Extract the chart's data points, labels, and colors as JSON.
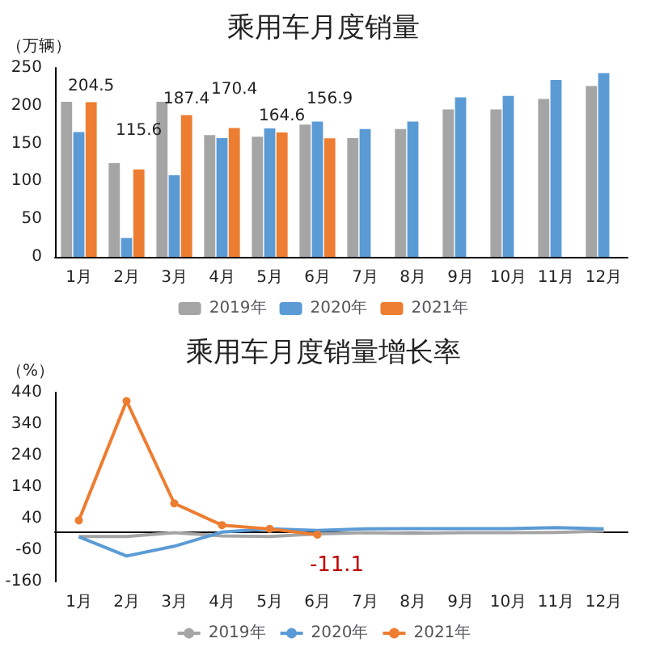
{
  "chart_data": [
    {
      "type": "bar",
      "title": "乘用车月度销量",
      "ylabel": "（万辆）",
      "categories": [
        "1月",
        "2月",
        "3月",
        "4月",
        "5月",
        "6月",
        "7月",
        "8月",
        "9月",
        "10月",
        "11月",
        "12月"
      ],
      "series": [
        {
          "name": "2019年",
          "color": "#a5a5a5",
          "values": [
            205,
            124,
            205,
            161,
            159,
            175,
            157,
            169,
            195,
            195,
            209,
            226
          ]
        },
        {
          "name": "2020年",
          "color": "#5b9bd5",
          "values": [
            165,
            25,
            108,
            157,
            170,
            179,
            169,
            179,
            211,
            213,
            234,
            243
          ]
        },
        {
          "name": "2021年",
          "color": "#ed7d31",
          "values": [
            204.5,
            115.6,
            187.4,
            170.4,
            164.6,
            156.9,
            null,
            null,
            null,
            null,
            null,
            null
          ],
          "value_labels": [
            "204.5",
            "115.6",
            "187.4",
            "170.4",
            "164.6",
            "156.9",
            null,
            null,
            null,
            null,
            null,
            null
          ]
        }
      ],
      "ylim": [
        0,
        250
      ],
      "yticks": [
        0,
        50,
        100,
        150,
        200,
        250
      ],
      "grid": false,
      "legend": "bottom"
    },
    {
      "type": "line",
      "title": "乘用车月度销量增长率",
      "ylabel": "（%）",
      "categories": [
        "1月",
        "2月",
        "3月",
        "4月",
        "5月",
        "6月",
        "7月",
        "8月",
        "9月",
        "10月",
        "11月",
        "12月"
      ],
      "series": [
        {
          "name": "2019年",
          "color": "#a5a5a5",
          "marker": "none",
          "values": [
            -17,
            -17,
            -5,
            -15,
            -17,
            -9,
            -5,
            -7,
            -5,
            -5,
            -4,
            0
          ]
        },
        {
          "name": "2020年",
          "color": "#5b9bd5",
          "marker": "none",
          "values": [
            -18,
            -79,
            -48,
            -3,
            7,
            2,
            7,
            8,
            8,
            8,
            11,
            7
          ]
        },
        {
          "name": "2021年",
          "color": "#ed7d31",
          "marker": "circle",
          "values": [
            34,
            413,
            88,
            19,
            7,
            -11.1,
            null,
            null,
            null,
            null,
            null,
            null
          ],
          "value_labels": [
            null,
            null,
            null,
            null,
            null,
            "-11.1",
            null,
            null,
            null,
            null,
            null,
            null
          ]
        }
      ],
      "ylim": [
        -160,
        440
      ],
      "yticks": [
        -160,
        -60,
        40,
        140,
        240,
        340,
        440
      ],
      "grid": false,
      "legend": "bottom"
    }
  ]
}
